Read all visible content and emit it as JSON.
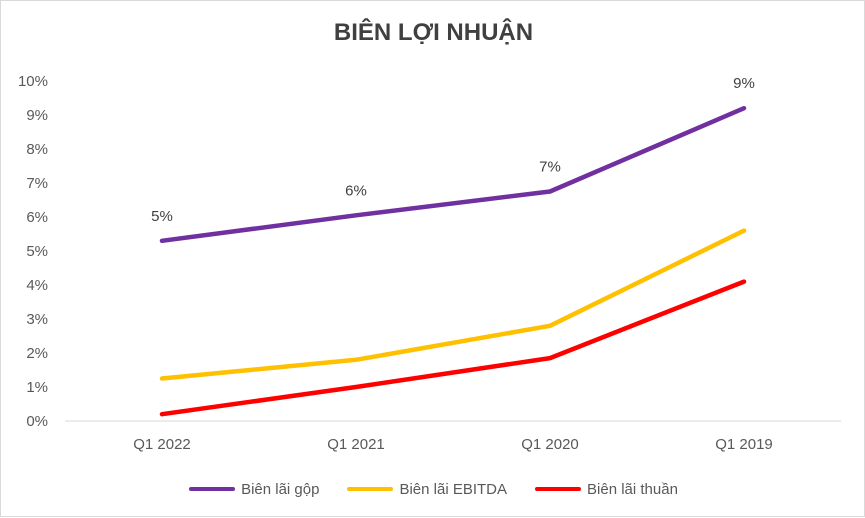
{
  "chart_data": {
    "type": "line",
    "title": "BIÊN LỢI NHUẬN",
    "categories": [
      "Q1 2022",
      "Q1 2021",
      "Q1 2020",
      "Q1 2019"
    ],
    "ylim": [
      0,
      10
    ],
    "y_ticks": [
      "0%",
      "1%",
      "2%",
      "3%",
      "4%",
      "5%",
      "6%",
      "7%",
      "8%",
      "9%",
      "10%"
    ],
    "grid": false,
    "legend_position": "bottom",
    "series": [
      {
        "name": "Biên lãi gộp",
        "values": [
          5.3,
          6.05,
          6.75,
          9.2
        ],
        "labels": [
          "5%",
          "6%",
          "7%",
          "9%"
        ],
        "color": "#7030a0"
      },
      {
        "name": "Biên lãi EBITDA",
        "values": [
          1.25,
          1.8,
          2.8,
          5.6
        ],
        "color": "#ffc000"
      },
      {
        "name": "Biên lãi thuần",
        "values": [
          0.2,
          1.0,
          1.85,
          4.1
        ],
        "color": "#ff0000"
      }
    ]
  }
}
